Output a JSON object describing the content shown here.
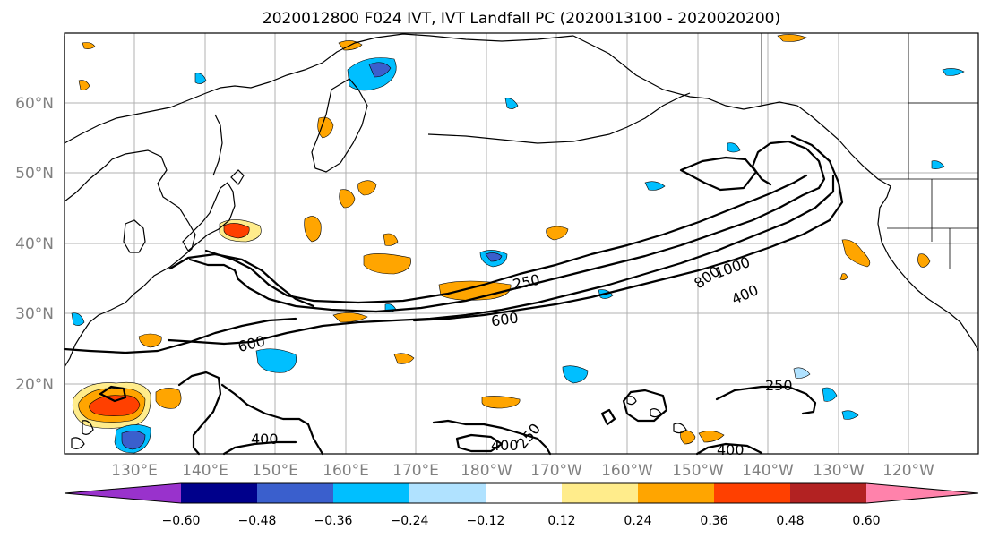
{
  "title": "2020012800 F024 IVT, IVT Landfall PC (2020013100 - 2020020200)",
  "lat_labels": [
    "60°N",
    "50°N",
    "40°N",
    "30°N",
    "20°N"
  ],
  "lon_labels": [
    "130°E",
    "140°E",
    "150°E",
    "160°E",
    "170°E",
    "180°W",
    "170°W",
    "160°W",
    "150°W",
    "140°W",
    "130°W",
    "120°W"
  ],
  "contour_labels": [
    "250",
    "600",
    "600",
    "800",
    "1000",
    "400",
    "250",
    "400",
    "400",
    "250",
    "400"
  ],
  "colorbar": {
    "colors": [
      "#9932cc",
      "#00008b",
      "#3a5fcd",
      "#00bfff",
      "#b0e2ff",
      "#ffffff",
      "#ffec8b",
      "#ffa500",
      "#ff4000",
      "#b22222",
      "#ff82ab"
    ],
    "tick_labels": [
      "−0.60",
      "−0.48",
      "−0.36",
      "−0.24",
      "−0.12",
      "0.12",
      "0.24",
      "0.36",
      "0.48",
      "0.60"
    ]
  }
}
